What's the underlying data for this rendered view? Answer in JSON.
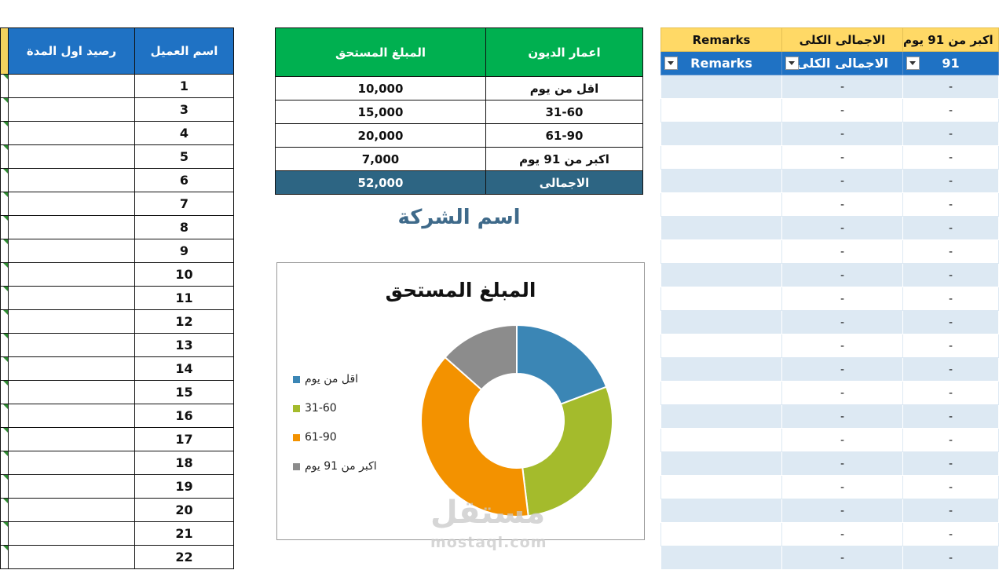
{
  "left_table": {
    "headers": {
      "balance": "رصيد اول المدة",
      "customer": "اسم العميل"
    },
    "rows": [
      "1",
      "3",
      "4",
      "5",
      "6",
      "7",
      "8",
      "9",
      "10",
      "11",
      "12",
      "13",
      "14",
      "15",
      "16",
      "17",
      "18",
      "19",
      "20",
      "21",
      "22"
    ]
  },
  "aging_table": {
    "header_amount": "المبلغ المستحق",
    "header_age": "اعمار الديون",
    "rows": [
      {
        "amount": "10,000",
        "age": "اقل من يوم"
      },
      {
        "amount": "15,000",
        "age": "31-60"
      },
      {
        "amount": "20,000",
        "age": "61-90"
      },
      {
        "amount": "7,000",
        "age": "اكبر من 91 يوم"
      }
    ],
    "total": {
      "amount": "52,000",
      "label": "الاجمالى"
    }
  },
  "company_name": "اسم الشركة",
  "chart_data": {
    "type": "pie",
    "title": "المبلغ المستحق",
    "categories": [
      "اقل من يوم",
      "31-60",
      "61-90",
      "اكبر من 91 يوم"
    ],
    "values": [
      10000,
      15000,
      20000,
      7000
    ],
    "colors": [
      "#3b86b5",
      "#a4bb2c",
      "#f39200",
      "#8c8c8c"
    ],
    "legend_position": "left",
    "donut": true
  },
  "right_table": {
    "header_row1": {
      "remarks": "Remarks",
      "total": "الاجمالى الكلى",
      "over91": "اكبر من 91 يوم"
    },
    "header_row2": {
      "remarks": "Remarks",
      "total": "الاجمالى الكلى",
      "over91": "91"
    },
    "cell_value": "-",
    "row_count": 21
  },
  "watermark": {
    "word": "مستقل",
    "url": "mostaql.com"
  }
}
